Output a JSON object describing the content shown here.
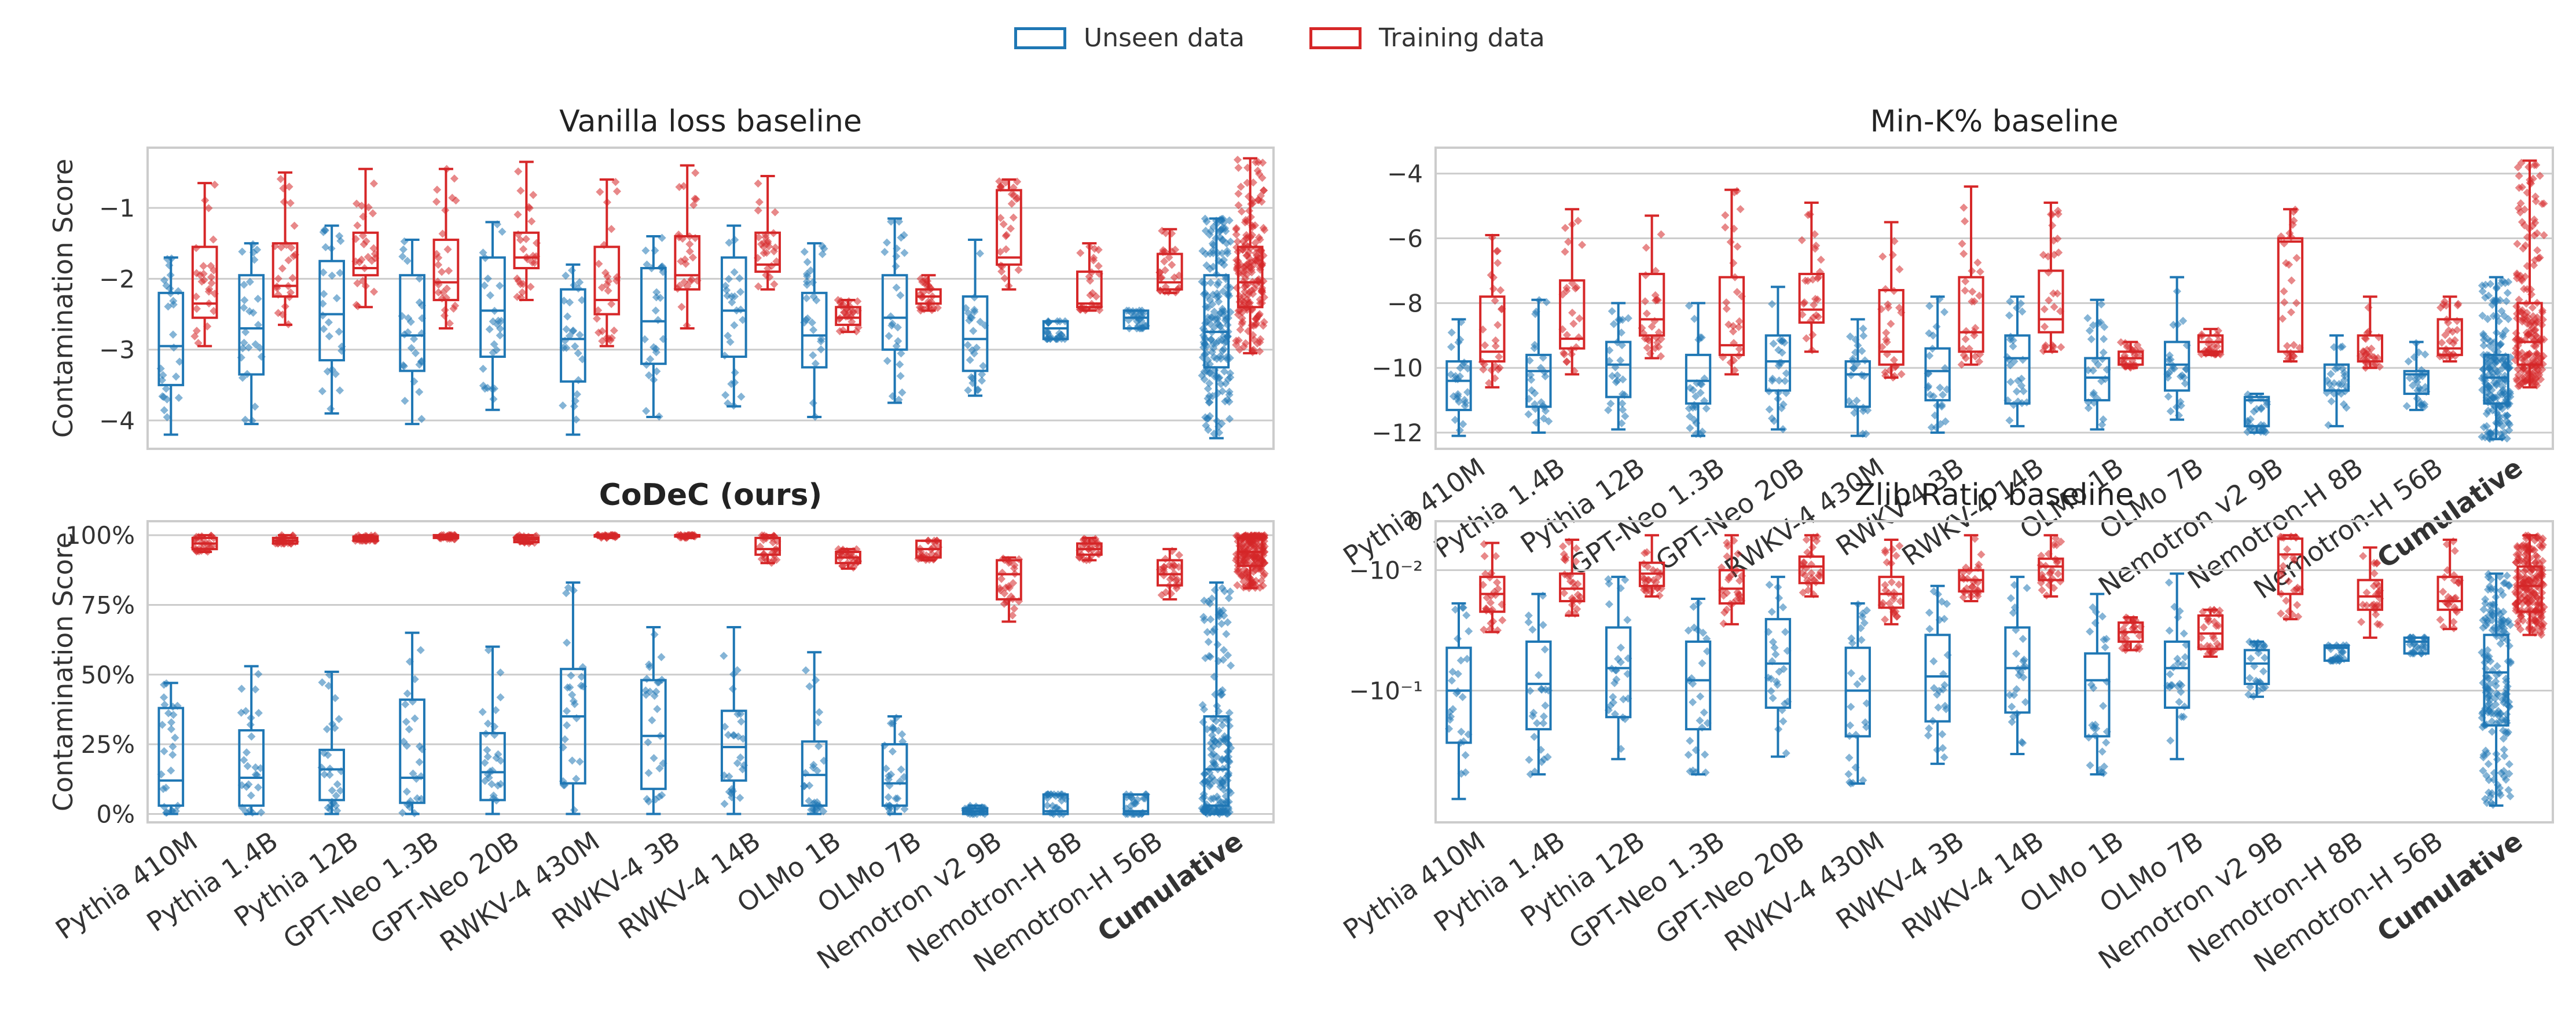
{
  "legend": {
    "unseen": "Unseen data",
    "training": "Training data",
    "unseen_color": "#1f77b4",
    "training_color": "#d62728"
  },
  "chart_data": [
    {
      "type": "box",
      "title": "Vanilla loss baseline",
      "title_bold": false,
      "xlabel": "",
      "ylabel": "Contamination Score",
      "ylim": [
        -4.4,
        -0.15
      ],
      "yticks": [
        -4,
        -3,
        -2,
        -1
      ],
      "ytick_labels": [
        "−4",
        "−3",
        "−2",
        "−1"
      ],
      "show_xtick_labels": false,
      "categories": [
        "Pythia 410M",
        "Pythia 1.4B",
        "Pythia 12B",
        "GPT-Neo 1.3B",
        "GPT-Neo 20B",
        "RWKV-4 430M",
        "RWKV-4 3B",
        "RWKV-4 14B",
        "OLMo 1B",
        "OLMo 7B",
        "Nemotron v2 9B",
        "Nemotron-H 8B",
        "Nemotron-H 56B",
        "Cumulative"
      ],
      "series": [
        {
          "name": "Unseen data",
          "boxes": [
            [
              -4.2,
              -3.5,
              -2.95,
              -2.2,
              -1.7
            ],
            [
              -4.05,
              -3.35,
              -2.7,
              -1.95,
              -1.5
            ],
            [
              -3.9,
              -3.15,
              -2.5,
              -1.75,
              -1.25
            ],
            [
              -4.05,
              -3.3,
              -2.8,
              -1.95,
              -1.45
            ],
            [
              -3.85,
              -3.1,
              -2.45,
              -1.7,
              -1.2
            ],
            [
              -4.2,
              -3.45,
              -2.85,
              -2.15,
              -1.8
            ],
            [
              -3.95,
              -3.2,
              -2.6,
              -1.85,
              -1.4
            ],
            [
              -3.8,
              -3.1,
              -2.45,
              -1.7,
              -1.25
            ],
            [
              -3.95,
              -3.25,
              -2.8,
              -2.2,
              -1.5
            ],
            [
              -3.75,
              -3.0,
              -2.55,
              -1.95,
              -1.15
            ],
            [
              -3.65,
              -3.3,
              -2.85,
              -2.25,
              -1.45
            ],
            [
              -2.85,
              -2.85,
              -2.7,
              -2.6,
              -2.6
            ],
            [
              -2.7,
              -2.7,
              -2.55,
              -2.45,
              -2.45
            ],
            [
              -4.25,
              -3.25,
              -2.75,
              -1.95,
              -1.15
            ]
          ]
        },
        {
          "name": "Training data",
          "boxes": [
            [
              -2.95,
              -2.55,
              -2.35,
              -1.55,
              -0.65
            ],
            [
              -2.65,
              -2.25,
              -2.1,
              -1.5,
              -0.5
            ],
            [
              -2.4,
              -1.95,
              -1.85,
              -1.35,
              -0.45
            ],
            [
              -2.7,
              -2.3,
              -2.05,
              -1.45,
              -0.45
            ],
            [
              -2.3,
              -1.85,
              -1.7,
              -1.35,
              -0.35
            ],
            [
              -2.95,
              -2.5,
              -2.3,
              -1.55,
              -0.6
            ],
            [
              -2.7,
              -2.15,
              -1.95,
              -1.4,
              -0.4
            ],
            [
              -2.15,
              -1.9,
              -1.8,
              -1.35,
              -0.55
            ],
            [
              -2.75,
              -2.65,
              -2.55,
              -2.4,
              -2.3
            ],
            [
              -2.45,
              -2.35,
              -2.25,
              -2.15,
              -1.95
            ],
            [
              -2.15,
              -1.8,
              -1.7,
              -0.75,
              -0.6
            ],
            [
              -2.45,
              -2.4,
              -2.35,
              -1.9,
              -1.5
            ],
            [
              -2.2,
              -2.15,
              -2.05,
              -1.65,
              -1.3
            ],
            [
              -3.05,
              -2.4,
              -2.05,
              -1.55,
              -0.3
            ]
          ]
        }
      ]
    },
    {
      "type": "box",
      "title": "Min-K% baseline",
      "title_bold": false,
      "xlabel": "",
      "ylabel": "",
      "ylim": [
        -12.5,
        -3.2
      ],
      "yticks": [
        -12,
        -10,
        -8,
        -6,
        -4
      ],
      "ytick_labels": [
        "−12",
        "−10",
        "−8",
        "−6",
        "−4"
      ],
      "show_xtick_labels": true,
      "categories": [
        "Pythia 410M",
        "Pythia 1.4B",
        "Pythia 12B",
        "GPT-Neo 1.3B",
        "GPT-Neo 20B",
        "RWKV-4 430M",
        "RWKV-4 3B",
        "RWKV-4 14B",
        "OLMo 1B",
        "OLMo 7B",
        "Nemotron v2 9B",
        "Nemotron-H 8B",
        "Nemotron-H 56B",
        "Cumulative"
      ],
      "series": [
        {
          "name": "Unseen data",
          "boxes": [
            [
              -12.1,
              -11.3,
              -10.4,
              -9.8,
              -8.5
            ],
            [
              -12.0,
              -11.2,
              -10.1,
              -9.6,
              -7.9
            ],
            [
              -11.9,
              -10.9,
              -9.9,
              -9.2,
              -8.0
            ],
            [
              -12.1,
              -11.1,
              -10.4,
              -9.6,
              -8.0
            ],
            [
              -11.9,
              -10.7,
              -9.8,
              -9.0,
              -7.5
            ],
            [
              -12.1,
              -11.2,
              -10.2,
              -9.8,
              -8.5
            ],
            [
              -12.0,
              -11.0,
              -10.1,
              -9.4,
              -7.8
            ],
            [
              -11.8,
              -11.1,
              -9.7,
              -9.0,
              -7.8
            ],
            [
              -11.9,
              -11.0,
              -10.3,
              -9.7,
              -7.9
            ],
            [
              -11.6,
              -10.7,
              -9.9,
              -9.2,
              -7.2
            ],
            [
              -12.0,
              -11.8,
              -11.0,
              -10.9,
              -10.8
            ],
            [
              -11.8,
              -10.7,
              -9.9,
              -9.9,
              -9.0
            ],
            [
              -11.3,
              -10.8,
              -10.2,
              -10.1,
              -9.2
            ],
            [
              -12.2,
              -11.1,
              -10.3,
              -9.6,
              -7.2
            ]
          ]
        },
        {
          "name": "Training data",
          "boxes": [
            [
              -10.6,
              -9.8,
              -9.5,
              -7.8,
              -5.9
            ],
            [
              -10.2,
              -9.4,
              -9.1,
              -7.3,
              -5.1
            ],
            [
              -9.7,
              -9.0,
              -8.5,
              -7.1,
              -5.3
            ],
            [
              -10.2,
              -9.6,
              -9.3,
              -7.2,
              -4.5
            ],
            [
              -9.5,
              -8.6,
              -8.2,
              -7.1,
              -4.9
            ],
            [
              -10.3,
              -9.9,
              -9.5,
              -7.6,
              -5.5
            ],
            [
              -9.9,
              -9.5,
              -8.9,
              -7.2,
              -4.4
            ],
            [
              -9.5,
              -8.9,
              -8.5,
              -7.0,
              -4.9
            ],
            [
              -10.0,
              -9.9,
              -9.7,
              -9.5,
              -9.2
            ],
            [
              -9.6,
              -9.5,
              -9.2,
              -9.0,
              -8.8
            ],
            [
              -9.8,
              -9.5,
              -6.1,
              -6.0,
              -5.1
            ],
            [
              -10.0,
              -9.8,
              -9.8,
              -9.0,
              -7.8
            ],
            [
              -9.8,
              -9.6,
              -9.4,
              -8.5,
              -7.8
            ],
            [
              -10.6,
              -9.9,
              -9.2,
              -8.0,
              -3.6
            ]
          ]
        }
      ]
    },
    {
      "type": "box",
      "title": "CoDeC (ours)",
      "title_bold": true,
      "xlabel": "",
      "ylabel": "Contamination Score",
      "ylim": [
        -0.03,
        1.05
      ],
      "yticks": [
        0,
        0.25,
        0.5,
        0.75,
        1.0
      ],
      "ytick_labels": [
        "0%",
        "25%",
        "50%",
        "75%",
        "100%"
      ],
      "show_xtick_labels": true,
      "categories": [
        "Pythia 410M",
        "Pythia 1.4B",
        "Pythia 12B",
        "GPT-Neo 1.3B",
        "GPT-Neo 20B",
        "RWKV-4 430M",
        "RWKV-4 3B",
        "RWKV-4 14B",
        "OLMo 1B",
        "OLMo 7B",
        "Nemotron v2 9B",
        "Nemotron-H 8B",
        "Nemotron-H 56B",
        "Cumulative"
      ],
      "series": [
        {
          "name": "Unseen data",
          "boxes": [
            [
              0.0,
              0.03,
              0.12,
              0.38,
              0.47
            ],
            [
              0.0,
              0.03,
              0.13,
              0.3,
              0.53
            ],
            [
              0.0,
              0.05,
              0.16,
              0.23,
              0.51
            ],
            [
              0.0,
              0.04,
              0.13,
              0.41,
              0.65
            ],
            [
              0.0,
              0.05,
              0.15,
              0.29,
              0.6
            ],
            [
              0.0,
              0.11,
              0.35,
              0.52,
              0.83
            ],
            [
              0.0,
              0.09,
              0.28,
              0.48,
              0.67
            ],
            [
              0.0,
              0.12,
              0.24,
              0.37,
              0.67
            ],
            [
              0.0,
              0.03,
              0.14,
              0.26,
              0.58
            ],
            [
              0.0,
              0.03,
              0.11,
              0.25,
              0.35
            ],
            [
              0.0,
              0.0,
              0.01,
              0.02,
              0.03
            ],
            [
              0.0,
              0.0,
              0.01,
              0.07,
              0.07
            ],
            [
              0.0,
              0.0,
              0.01,
              0.07,
              0.07
            ],
            [
              0.0,
              0.03,
              0.16,
              0.35,
              0.83
            ]
          ]
        },
        {
          "name": "Training data",
          "boxes": [
            [
              0.94,
              0.95,
              0.97,
              0.99,
              1.0
            ],
            [
              0.97,
              0.97,
              0.98,
              0.99,
              1.0
            ],
            [
              0.98,
              0.98,
              0.99,
              0.995,
              1.0
            ],
            [
              0.985,
              0.99,
              0.995,
              1.0,
              1.0
            ],
            [
              0.97,
              0.975,
              0.985,
              0.99,
              1.0
            ],
            [
              0.99,
              0.995,
              1.0,
              1.0,
              1.0
            ],
            [
              0.99,
              0.995,
              1.0,
              1.0,
              1.0
            ],
            [
              0.9,
              0.93,
              0.95,
              0.99,
              1.0
            ],
            [
              0.88,
              0.9,
              0.92,
              0.94,
              0.95
            ],
            [
              0.91,
              0.92,
              0.95,
              0.98,
              0.98
            ],
            [
              0.69,
              0.77,
              0.86,
              0.91,
              0.92
            ],
            [
              0.91,
              0.93,
              0.95,
              0.97,
              0.99
            ],
            [
              0.77,
              0.82,
              0.86,
              0.91,
              0.95
            ],
            [
              0.81,
              0.89,
              0.94,
              0.99,
              1.0
            ]
          ]
        }
      ]
    },
    {
      "type": "box",
      "title": "Zlib Ratio baseline",
      "title_bold": false,
      "xlabel": "",
      "ylabel": "",
      "yscale": "symlog",
      "ylim": [
        -0.7,
        0
      ],
      "yticks": [
        0,
        -0.01,
        -0.1
      ],
      "ytick_labels": [
        "0",
        "−10⁻²",
        "−10⁻¹"
      ],
      "show_xtick_labels": true,
      "categories": [
        "Pythia 410M",
        "Pythia 1.4B",
        "Pythia 12B",
        "GPT-Neo 1.3B",
        "GPT-Neo 20B",
        "RWKV-4 430M",
        "RWKV-4 3B",
        "RWKV-4 14B",
        "OLMo 1B",
        "OLMo 7B",
        "Nemotron v2 9B",
        "Nemotron-H 8B",
        "Nemotron-H 56B",
        "Cumulative"
      ],
      "series": [
        {
          "name": "Unseen data",
          "boxes": [
            [
              -0.5,
              -0.22,
              -0.1,
              -0.05,
              -0.022
            ],
            [
              -0.35,
              -0.18,
              -0.09,
              -0.045,
              -0.018
            ],
            [
              -0.28,
              -0.15,
              -0.07,
              -0.035,
              -0.012
            ],
            [
              -0.35,
              -0.18,
              -0.085,
              -0.045,
              -0.02
            ],
            [
              -0.27,
              -0.13,
              -0.065,
              -0.03,
              -0.012
            ],
            [
              -0.4,
              -0.2,
              -0.1,
              -0.05,
              -0.022
            ],
            [
              -0.3,
              -0.16,
              -0.08,
              -0.04,
              -0.015
            ],
            [
              -0.26,
              -0.14,
              -0.07,
              -0.035,
              -0.012
            ],
            [
              -0.35,
              -0.2,
              -0.085,
              -0.055,
              -0.018
            ],
            [
              -0.28,
              -0.13,
              -0.07,
              -0.045,
              -0.011
            ],
            [
              -0.11,
              -0.09,
              -0.065,
              -0.052,
              -0.045
            ],
            [
              -0.062,
              -0.062,
              -0.05,
              -0.048,
              -0.048
            ],
            [
              -0.055,
              -0.055,
              -0.045,
              -0.042,
              -0.042
            ],
            [
              -0.55,
              -0.17,
              -0.075,
              -0.04,
              -0.011
            ]
          ]
        },
        {
          "name": "Training data",
          "boxes": [
            [
              -0.038,
              -0.026,
              -0.018,
              -0.012,
              -0.0036
            ],
            [
              -0.028,
              -0.021,
              -0.016,
              -0.011,
              -0.003
            ],
            [
              -0.019,
              -0.015,
              -0.011,
              -0.008,
              -0.0022
            ],
            [
              -0.033,
              -0.022,
              -0.016,
              -0.01,
              -0.0022
            ],
            [
              -0.019,
              -0.014,
              -0.009,
              -0.0065,
              -0.0022
            ],
            [
              -0.033,
              -0.024,
              -0.018,
              -0.012,
              -0.003
            ],
            [
              -0.021,
              -0.017,
              -0.013,
              -0.01,
              -0.0022
            ],
            [
              -0.019,
              -0.013,
              -0.009,
              -0.007,
              -0.0022
            ],
            [
              -0.052,
              -0.045,
              -0.038,
              -0.032,
              -0.029
            ],
            [
              -0.058,
              -0.051,
              -0.039,
              -0.028,
              -0.025
            ],
            [
              -0.03,
              -0.018,
              -0.006,
              -0.0028,
              -0.0022
            ],
            [
              -0.042,
              -0.025,
              -0.019,
              -0.013,
              -0.0045
            ],
            [
              -0.036,
              -0.025,
              -0.021,
              -0.012,
              -0.003
            ],
            [
              -0.04,
              -0.026,
              -0.015,
              -0.009,
              -0.0022
            ]
          ]
        }
      ]
    }
  ]
}
